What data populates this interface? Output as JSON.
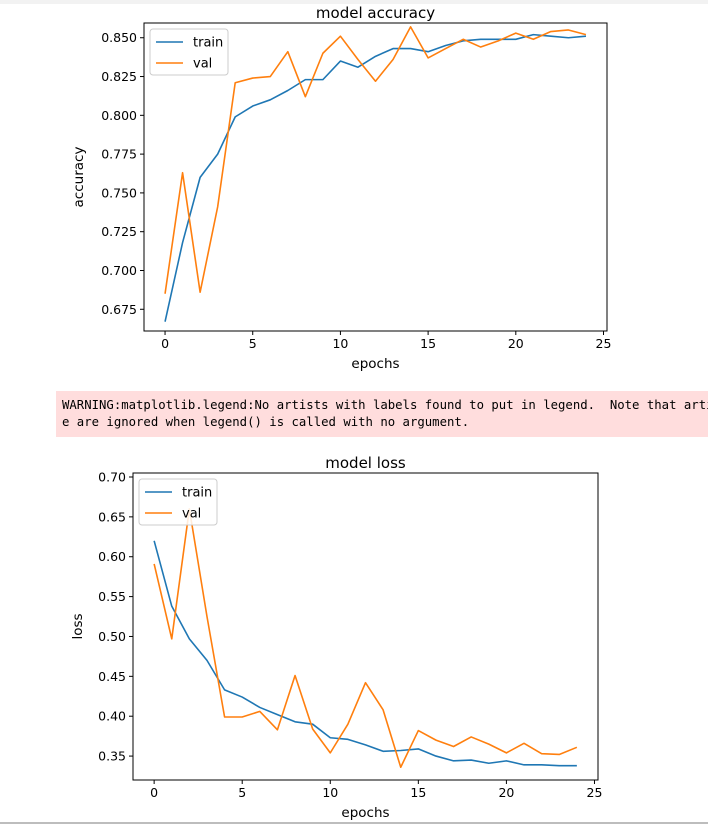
{
  "warning": {
    "lines": [
      "WARNING:matplotlib.legend:No artists with labels found to put in legend.  Note that artists whose label start with an underscore are ignored when legend() is called with no argument.",
      "e are ignored when legend() is called with no argument."
    ]
  },
  "chart_data": [
    {
      "type": "line",
      "title": "model accuracy",
      "xlabel": "epochs",
      "ylabel": "accuracy",
      "xlim": [
        -1.2,
        25.2
      ],
      "ylim": [
        0.661,
        0.8595
      ],
      "xticks": [
        0,
        5,
        10,
        15,
        20,
        25
      ],
      "yticks": [
        0.675,
        0.7,
        0.725,
        0.75,
        0.775,
        0.8,
        0.825,
        0.85
      ],
      "ytick_labels": [
        "0.675",
        "0.700",
        "0.725",
        "0.750",
        "0.775",
        "0.800",
        "0.825",
        "0.850"
      ],
      "legend": "upper left",
      "x": [
        0,
        1,
        2,
        3,
        4,
        5,
        6,
        7,
        8,
        9,
        10,
        11,
        12,
        13,
        14,
        15,
        16,
        17,
        18,
        19,
        20,
        21,
        22,
        23,
        24
      ],
      "series": [
        {
          "name": "train",
          "color": "#1f77b4",
          "values": [
            0.667,
            0.718,
            0.76,
            0.775,
            0.799,
            0.806,
            0.81,
            0.816,
            0.823,
            0.823,
            0.835,
            0.831,
            0.838,
            0.843,
            0.843,
            0.841,
            0.845,
            0.848,
            0.849,
            0.849,
            0.849,
            0.852,
            0.851,
            0.85,
            0.851
          ]
        },
        {
          "name": "val",
          "color": "#ff7f0e",
          "values": [
            0.685,
            0.763,
            0.686,
            0.741,
            0.821,
            0.824,
            0.825,
            0.841,
            0.812,
            0.84,
            0.851,
            0.836,
            0.822,
            0.836,
            0.857,
            0.837,
            0.843,
            0.849,
            0.844,
            0.848,
            0.853,
            0.849,
            0.854,
            0.855,
            0.852
          ]
        }
      ]
    },
    {
      "type": "line",
      "title": "model loss",
      "xlabel": "epochs",
      "ylabel": "loss",
      "xlim": [
        -1.2,
        25.2
      ],
      "ylim": [
        0.32,
        0.705
      ],
      "xticks": [
        0,
        5,
        10,
        15,
        20,
        25
      ],
      "yticks": [
        0.35,
        0.4,
        0.45,
        0.5,
        0.55,
        0.6,
        0.65,
        0.7
      ],
      "ytick_labels": [
        "0.35",
        "0.40",
        "0.45",
        "0.50",
        "0.55",
        "0.60",
        "0.65",
        "0.70"
      ],
      "legend": "upper left",
      "x": [
        0,
        1,
        2,
        3,
        4,
        5,
        6,
        7,
        8,
        9,
        10,
        11,
        12,
        13,
        14,
        15,
        16,
        17,
        18,
        19,
        20,
        21,
        22,
        23,
        24
      ],
      "series": [
        {
          "name": "train",
          "color": "#1f77b4",
          "values": [
            0.62,
            0.538,
            0.497,
            0.47,
            0.433,
            0.424,
            0.411,
            0.402,
            0.393,
            0.39,
            0.373,
            0.371,
            0.364,
            0.356,
            0.357,
            0.359,
            0.35,
            0.344,
            0.345,
            0.341,
            0.344,
            0.339,
            0.339,
            0.338,
            0.338
          ]
        },
        {
          "name": "val",
          "color": "#ff7f0e",
          "values": [
            0.591,
            0.497,
            0.66,
            0.525,
            0.399,
            0.399,
            0.406,
            0.383,
            0.451,
            0.384,
            0.354,
            0.39,
            0.442,
            0.408,
            0.336,
            0.382,
            0.37,
            0.362,
            0.374,
            0.365,
            0.354,
            0.366,
            0.353,
            0.352,
            0.361
          ]
        }
      ]
    }
  ]
}
